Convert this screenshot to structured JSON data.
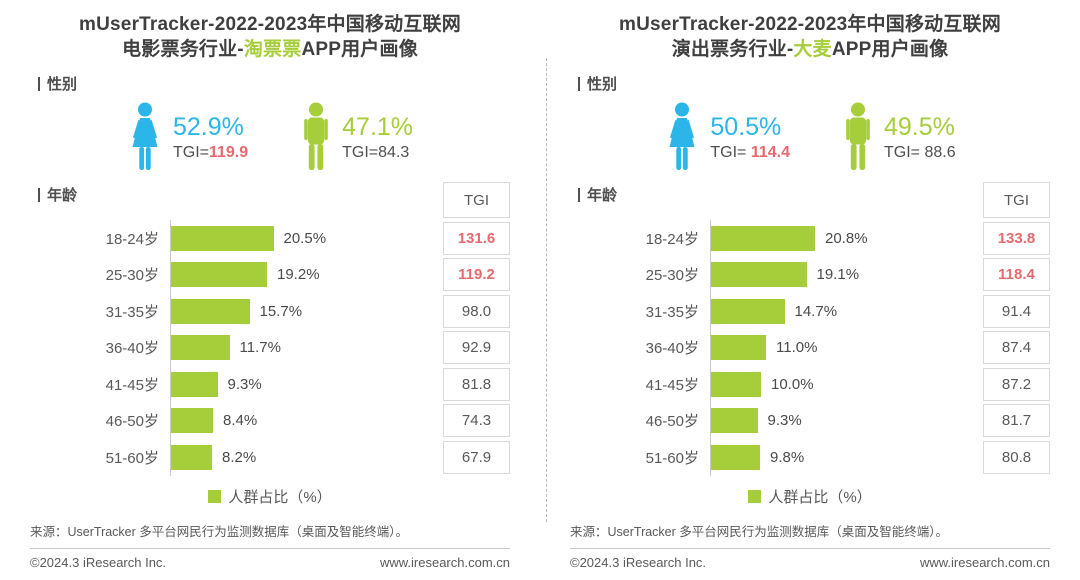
{
  "colors": {
    "green": "#a6cd3a",
    "blue": "#2cb5e8",
    "red": "#e6696e"
  },
  "panels": [
    {
      "title_line1": "mUserTracker-2022-2023年中国移动互联网",
      "title_prefix": "电影票务行业-",
      "title_highlight": "淘票票",
      "title_suffix": "APP用户画像",
      "section_gender": "性别",
      "section_age": "年龄",
      "female": {
        "percent": "52.9%",
        "tgi_label": "TGI=",
        "tgi_value": "119.9"
      },
      "male": {
        "percent": "47.1%",
        "tgi_label": "TGI=",
        "tgi_value": "84.3"
      },
      "tgi_header": "TGI",
      "rows": [
        {
          "label": "18-24岁",
          "value": "20.5%",
          "pct": 20.5,
          "tgi": "131.6",
          "hot": true
        },
        {
          "label": "25-30岁",
          "value": "19.2%",
          "pct": 19.2,
          "tgi": "119.2",
          "hot": true
        },
        {
          "label": "31-35岁",
          "value": "15.7%",
          "pct": 15.7,
          "tgi": "98.0",
          "hot": false
        },
        {
          "label": "36-40岁",
          "value": "11.7%",
          "pct": 11.7,
          "tgi": "92.9",
          "hot": false
        },
        {
          "label": "41-45岁",
          "value": "9.3%",
          "pct": 9.3,
          "tgi": "81.8",
          "hot": false
        },
        {
          "label": "46-50岁",
          "value": "8.4%",
          "pct": 8.4,
          "tgi": "74.3",
          "hot": false
        },
        {
          "label": "51-60岁",
          "value": "8.2%",
          "pct": 8.2,
          "tgi": "67.9",
          "hot": false
        }
      ],
      "legend": "人群占比（%）",
      "source": "来源：UserTracker 多平台网民行为监测数据库（桌面及智能终端）。",
      "footer_left": "©2024.3 iResearch Inc.",
      "footer_right": "www.iresearch.com.cn"
    },
    {
      "title_line1": "mUserTracker-2022-2023年中国移动互联网",
      "title_prefix": "演出票务行业-",
      "title_highlight": "大麦",
      "title_suffix": "APP用户画像",
      "section_gender": "性别",
      "section_age": "年龄",
      "female": {
        "percent": "50.5%",
        "tgi_label": "TGI= ",
        "tgi_value": "114.4"
      },
      "male": {
        "percent": "49.5%",
        "tgi_label": "TGI= ",
        "tgi_value": "88.6"
      },
      "tgi_header": "TGI",
      "rows": [
        {
          "label": "18-24岁",
          "value": "20.8%",
          "pct": 20.8,
          "tgi": "133.8",
          "hot": true
        },
        {
          "label": "25-30岁",
          "value": "19.1%",
          "pct": 19.1,
          "tgi": "118.4",
          "hot": true
        },
        {
          "label": "31-35岁",
          "value": "14.7%",
          "pct": 14.7,
          "tgi": "91.4",
          "hot": false
        },
        {
          "label": "36-40岁",
          "value": "11.0%",
          "pct": 11.0,
          "tgi": "87.4",
          "hot": false
        },
        {
          "label": "41-45岁",
          "value": "10.0%",
          "pct": 10.0,
          "tgi": "87.2",
          "hot": false
        },
        {
          "label": "46-50岁",
          "value": "9.3%",
          "pct": 9.3,
          "tgi": "81.7",
          "hot": false
        },
        {
          "label": "51-60岁",
          "value": "9.8%",
          "pct": 9.8,
          "tgi": "80.8",
          "hot": false
        }
      ],
      "legend": "人群占比（%）",
      "source": "来源：UserTracker 多平台网民行为监测数据库（桌面及智能终端）。",
      "footer_left": "©2024.3 iResearch Inc.",
      "footer_right": "www.iresearch.com.cn"
    }
  ],
  "chart_data": [
    {
      "type": "bar",
      "orientation": "horizontal",
      "title": "mUserTracker-2022-2023年中国移动互联网电影票务行业-淘票票APP用户画像",
      "gender": {
        "female_percent": 52.9,
        "female_tgi": 119.9,
        "male_percent": 47.1,
        "male_tgi": 84.3
      },
      "categories": [
        "18-24岁",
        "25-30岁",
        "31-35岁",
        "36-40岁",
        "41-45岁",
        "46-50岁",
        "51-60岁"
      ],
      "values": [
        20.5,
        19.2,
        15.7,
        11.7,
        9.3,
        8.4,
        8.2
      ],
      "tgi": [
        131.6,
        119.2,
        98.0,
        92.9,
        81.8,
        74.3,
        67.9
      ],
      "xlabel": "人群占比（%）",
      "ylabel": "年龄",
      "xlim": [
        0,
        25
      ],
      "grid": false,
      "legend_position": "bottom"
    },
    {
      "type": "bar",
      "orientation": "horizontal",
      "title": "mUserTracker-2022-2023年中国移动互联网演出票务行业-大麦APP用户画像",
      "gender": {
        "female_percent": 50.5,
        "female_tgi": 114.4,
        "male_percent": 49.5,
        "male_tgi": 88.6
      },
      "categories": [
        "18-24岁",
        "25-30岁",
        "31-35岁",
        "36-40岁",
        "41-45岁",
        "46-50岁",
        "51-60岁"
      ],
      "values": [
        20.8,
        19.1,
        14.7,
        11.0,
        10.0,
        9.3,
        9.8
      ],
      "tgi": [
        133.8,
        118.4,
        91.4,
        87.4,
        87.2,
        81.7,
        80.8
      ],
      "xlabel": "人群占比（%）",
      "ylabel": "年龄",
      "xlim": [
        0,
        25
      ],
      "grid": false,
      "legend_position": "bottom"
    }
  ]
}
